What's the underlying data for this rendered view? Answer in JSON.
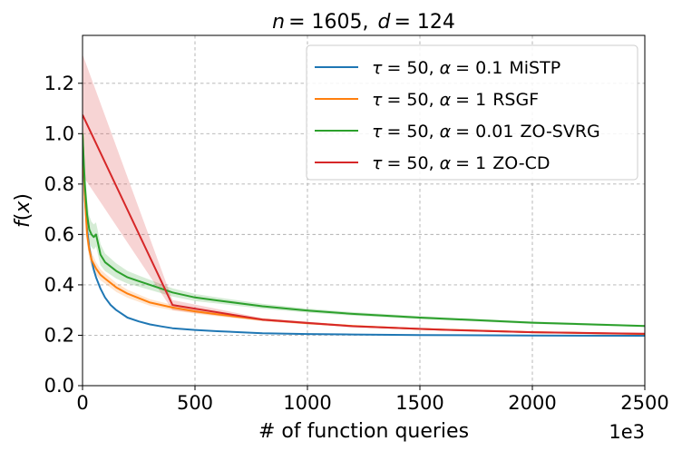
{
  "chart_data": {
    "type": "line",
    "title": "n = 1605,  d = 124",
    "title_parts": {
      "n_symbol": "n",
      "n_value": "= 1605,",
      "d_symbol": "d",
      "d_value": "= 124"
    },
    "xlabel": "# of function queries",
    "ylabel": "f(x)",
    "ylabel_parts": {
      "f": "f",
      "open": "(",
      "x": "x",
      "close": ")"
    },
    "x_offset_label": "1e3",
    "xlim": [
      0,
      2500
    ],
    "ylim": [
      0,
      1.39
    ],
    "xticks": [
      0,
      500,
      1000,
      1500,
      2000,
      2500
    ],
    "xtick_labels": [
      "0",
      "500",
      "1000",
      "1500",
      "2000",
      "2500"
    ],
    "yticks": [
      0,
      0.2,
      0.4,
      0.6,
      0.8,
      1.0,
      1.2
    ],
    "ytick_labels": [
      "0.0",
      "0.2",
      "0.4",
      "0.6",
      "0.8",
      "1.0",
      "1.2"
    ],
    "grid": true,
    "legend_position": "top-right",
    "series": [
      {
        "name": "τ = 50, α = 0.1 MiSTP",
        "legend": {
          "tau": "τ",
          "eq1": "= 50,",
          "alpha": "α",
          "eq2": "= 0.1",
          "method": "MiSTP"
        },
        "color": "#1f77b4",
        "band": false,
        "x": [
          0,
          10,
          20,
          30,
          40,
          50,
          60,
          80,
          100,
          125,
          150,
          200,
          250,
          300,
          350,
          400,
          500,
          600,
          700,
          800,
          1000,
          1200,
          1500,
          2000,
          2500
        ],
        "y": [
          0.95,
          0.75,
          0.62,
          0.55,
          0.5,
          0.46,
          0.43,
          0.385,
          0.35,
          0.32,
          0.3,
          0.27,
          0.255,
          0.243,
          0.235,
          0.228,
          0.221,
          0.216,
          0.212,
          0.208,
          0.205,
          0.203,
          0.201,
          0.199,
          0.198
        ]
      },
      {
        "name": "τ = 50, α = 1 RSGF",
        "legend": {
          "tau": "τ",
          "eq1": "= 50,",
          "alpha": "α",
          "eq2": "= 1",
          "method": "RSGF"
        },
        "color": "#ff7f0e",
        "band": true,
        "x": [
          0,
          10,
          20,
          30,
          40,
          60,
          80,
          100,
          150,
          200,
          300,
          400,
          500,
          600,
          800,
          1000,
          1200,
          1500,
          2000,
          2500
        ],
        "y": [
          1.0,
          0.75,
          0.6,
          0.54,
          0.5,
          0.465,
          0.44,
          0.425,
          0.39,
          0.365,
          0.33,
          0.31,
          0.295,
          0.283,
          0.262,
          0.248,
          0.237,
          0.225,
          0.212,
          0.205
        ],
        "spread": [
          0.06,
          0.05,
          0.04,
          0.035,
          0.03,
          0.025,
          0.022,
          0.02,
          0.018,
          0.016,
          0.013,
          0.011,
          0.009,
          0.008,
          0.006,
          0.005,
          0.004,
          0.004,
          0.003,
          0.003
        ]
      },
      {
        "name": "τ = 50, α = 0.01 ZO-SVRG",
        "legend": {
          "tau": "τ",
          "eq1": "= 50,",
          "alpha": "α",
          "eq2": "= 0.01",
          "method": "ZO-SVRG"
        },
        "color": "#2ca02c",
        "band": true,
        "x": [
          0,
          10,
          20,
          30,
          40,
          50,
          60,
          70,
          80,
          100,
          150,
          200,
          250,
          300,
          350,
          400,
          500,
          600,
          800,
          1000,
          1200,
          1500,
          2000,
          2500
        ],
        "y": [
          1.0,
          0.8,
          0.68,
          0.62,
          0.6,
          0.59,
          0.6,
          0.56,
          0.52,
          0.49,
          0.455,
          0.43,
          0.415,
          0.4,
          0.385,
          0.37,
          0.35,
          0.338,
          0.315,
          0.298,
          0.285,
          0.27,
          0.25,
          0.237
        ],
        "spread": [
          0.08,
          0.07,
          0.06,
          0.055,
          0.05,
          0.05,
          0.048,
          0.045,
          0.042,
          0.035,
          0.03,
          0.025,
          0.022,
          0.02,
          0.018,
          0.016,
          0.014,
          0.012,
          0.01,
          0.008,
          0.007,
          0.006,
          0.005,
          0.004
        ]
      },
      {
        "name": "τ = 50, α = 1 ZO-CD",
        "legend": {
          "tau": "τ",
          "eq1": "= 50,",
          "alpha": "α",
          "eq2": "= 1",
          "method": "ZO-CD"
        },
        "color": "#d62728",
        "band": true,
        "x": [
          0,
          400,
          800,
          1200,
          1600,
          2000,
          2400,
          2500
        ],
        "y": [
          1.075,
          0.32,
          0.262,
          0.236,
          0.222,
          0.212,
          0.207,
          0.206
        ],
        "spread": [
          0.24,
          0.02,
          0.006,
          0.004,
          0.003,
          0.003,
          0.002,
          0.002
        ]
      }
    ]
  }
}
